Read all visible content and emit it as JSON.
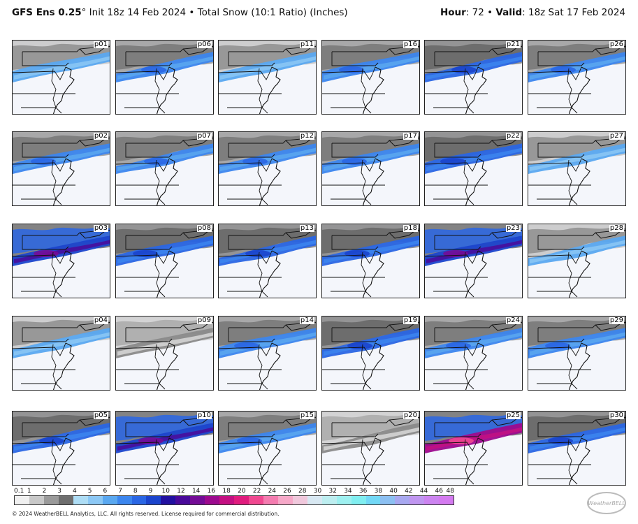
{
  "header": {
    "model": "GFS Ens 0.25",
    "degree": "°",
    "init": " Init 18z 14 Feb 2024",
    "separator": " • ",
    "product": "Total Snow (10:1 Ratio) (Inches)",
    "hour_label": "Hour",
    "hour_value": ": 72",
    "valid_label": "Valid",
    "valid_value": ": 18z Sat 17 Feb 2024"
  },
  "members": [
    "p01",
    "p06",
    "p11",
    "p16",
    "p21",
    "p26",
    "p02",
    "p07",
    "p12",
    "p17",
    "p22",
    "p27",
    "p03",
    "p08",
    "p13",
    "p18",
    "p23",
    "p28",
    "p04",
    "p09",
    "p14",
    "p19",
    "p24",
    "p29",
    "p05",
    "p10",
    "p15",
    "p20",
    "p25",
    "p30"
  ],
  "member_intensity": [
    1,
    2,
    1,
    2,
    3,
    2,
    2,
    2,
    2,
    2,
    3,
    1,
    4,
    3,
    3,
    3,
    4,
    1,
    1,
    0,
    2,
    3,
    2,
    2,
    3,
    4,
    2,
    0,
    5,
    3
  ],
  "colorbar": {
    "labels": [
      "0.1",
      "1",
      "2",
      "3",
      "4",
      "5",
      "6",
      "7",
      "8",
      "9",
      "10",
      "12",
      "14",
      "16",
      "18",
      "20",
      "22",
      "24",
      "26",
      "28",
      "30",
      "32",
      "34",
      "36",
      "38",
      "40",
      "42",
      "44",
      "46",
      "48"
    ],
    "colors": [
      "#f0f0f0",
      "#c8c8c8",
      "#9a9a9a",
      "#6e6e6e",
      "#aeddf5",
      "#8cc8f5",
      "#5aa8f0",
      "#3c86ee",
      "#2a66e4",
      "#1b44cc",
      "#2210a0",
      "#4a0a9a",
      "#740c96",
      "#9c0a8e",
      "#c41082",
      "#e01c7e",
      "#f04890",
      "#f47cb0",
      "#f6a8c8",
      "#f0c8dc",
      "#d8e8f2",
      "#bdeef0",
      "#9ef0f0",
      "#80eef0",
      "#72d8f6",
      "#8cc0f2",
      "#a8a8f0",
      "#c096f0",
      "#cc84f0",
      "#d47af0"
    ]
  },
  "footer": "© 2024 WeatherBELL Analytics, LLC. All rights reserved. License required for commercial distribution.",
  "logo_text": "WeatherBELL"
}
